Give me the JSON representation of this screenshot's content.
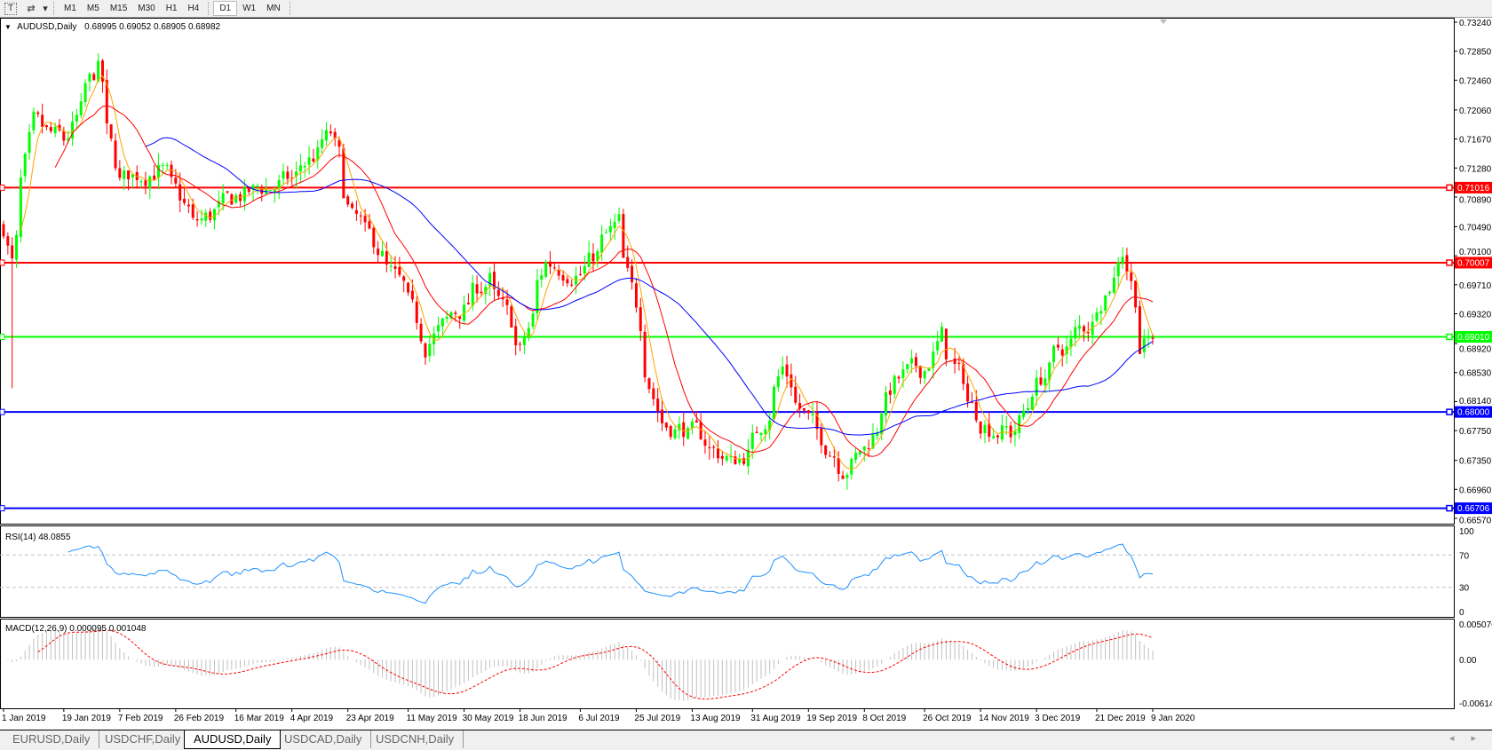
{
  "toolbar": {
    "icons": [
      "text-tool-icon",
      "objects-tool-icon",
      "dropdown-icon"
    ],
    "text_icon_glyph": "T",
    "objects_icon_glyph": "⇄",
    "dropdown_glyph": "▾",
    "timeframes": [
      "M1",
      "M5",
      "M15",
      "M30",
      "H1",
      "H4",
      "D1",
      "W1",
      "MN"
    ],
    "active_timeframe": "D1"
  },
  "chart_header": {
    "arrow": "▼",
    "symbol": "AUDUSD,Daily",
    "ohlc": "0.68995 0.69052 0.68905 0.68982"
  },
  "price_axis": {
    "ticks": [
      "0.73240",
      "0.72850",
      "0.72460",
      "0.72060",
      "0.71670",
      "0.71280",
      "0.70890",
      "0.70490",
      "0.70100",
      "0.69710",
      "0.69320",
      "0.68920",
      "0.68530",
      "0.68140",
      "0.67750",
      "0.67350",
      "0.66960",
      "0.66570"
    ],
    "range": [
      0.6657,
      0.7324
    ]
  },
  "levels": [
    {
      "price": 0.71016,
      "label": "0.71016",
      "color": "#ff0000"
    },
    {
      "price": 0.70007,
      "label": "0.70007",
      "color": "#ff0000"
    },
    {
      "price": 0.6901,
      "label": "0.69010",
      "color": "#00ff00"
    },
    {
      "price": 0.68,
      "label": "0.68000",
      "color": "#0000ff"
    },
    {
      "price": 0.66706,
      "label": "0.66706",
      "color": "#0000ff"
    }
  ],
  "colors": {
    "bull": "#00ff00",
    "bear": "#ff0000",
    "ma_fast": "#ffa500",
    "ma_mid": "#ff0000",
    "ma_slow": "#0000ff",
    "rsi": "#1e90ff",
    "macd_hist": "#c0c0c0",
    "macd_signal": "#ff0000"
  },
  "rsi": {
    "label": "RSI(14) 48.0855",
    "ticks": [
      "100",
      "70",
      "30",
      "0"
    ],
    "levels": [
      70,
      30
    ]
  },
  "macd": {
    "label": "MACD(12,26,9) 0.000095 0.001048",
    "ticks": [
      "0.005076",
      "0.00",
      "-0.006148"
    ],
    "range": [
      -0.006148,
      0.005076
    ]
  },
  "date_axis": [
    "1 Jan 2019",
    "19 Jan 2019",
    "7 Feb 2019",
    "26 Feb 2019",
    "16 Mar 2019",
    "4 Apr 2019",
    "23 Apr 2019",
    "11 May 2019",
    "30 May 2019",
    "18 Jun 2019",
    "6 Jul 2019",
    "25 Jul 2019",
    "13 Aug 2019",
    "31 Aug 2019",
    "19 Sep 2019",
    "8 Oct 2019",
    "26 Oct 2019",
    "14 Nov 2019",
    "3 Dec 2019",
    "21 Dec 2019",
    "9 Jan 2020"
  ],
  "tabs": [
    {
      "label": "EURUSD,Daily",
      "active": false
    },
    {
      "label": "USDCHF,Daily",
      "active": false
    },
    {
      "label": "AUDUSD,Daily",
      "active": true
    },
    {
      "label": "USDCAD,Daily",
      "active": false
    },
    {
      "label": "USDCNH,Daily",
      "active": false
    }
  ],
  "scroll_arrows": "◂ ▸",
  "chart_data": {
    "type": "candlestick",
    "symbol": "AUDUSD",
    "timeframe": "Daily",
    "ylim": [
      0.6657,
      0.7324
    ],
    "last_bar": {
      "open": 0.68995,
      "high": 0.69052,
      "low": 0.68905,
      "close": 0.68982
    },
    "approx_close_path": [
      [
        "2019-01-01",
        0.705
      ],
      [
        "2019-01-03",
        0.7
      ],
      [
        "2019-01-10",
        0.718
      ],
      [
        "2019-01-21",
        0.716
      ],
      [
        "2019-01-31",
        0.726
      ],
      [
        "2019-02-07",
        0.711
      ],
      [
        "2019-02-20",
        0.713
      ],
      [
        "2019-03-04",
        0.705
      ],
      [
        "2019-03-18",
        0.709
      ],
      [
        "2019-04-04",
        0.711
      ],
      [
        "2019-04-17",
        0.717
      ],
      [
        "2019-04-24",
        0.706
      ],
      [
        "2019-05-02",
        0.702
      ],
      [
        "2019-05-13",
        0.694
      ],
      [
        "2019-05-17",
        0.689
      ],
      [
        "2019-05-30",
        0.694
      ],
      [
        "2019-06-07",
        0.698
      ],
      [
        "2019-06-18",
        0.688
      ],
      [
        "2019-06-26",
        0.7
      ],
      [
        "2019-07-08",
        0.699
      ],
      [
        "2019-07-19",
        0.705
      ],
      [
        "2019-07-25",
        0.694
      ],
      [
        "2019-08-02",
        0.679
      ],
      [
        "2019-08-13",
        0.677
      ],
      [
        "2019-08-26",
        0.673
      ],
      [
        "2019-09-02",
        0.676
      ],
      [
        "2019-09-11",
        0.686
      ],
      [
        "2019-09-20",
        0.678
      ],
      [
        "2019-10-01",
        0.673
      ],
      [
        "2019-10-08",
        0.675
      ],
      [
        "2019-10-17",
        0.684
      ],
      [
        "2019-10-28",
        0.686
      ],
      [
        "2019-11-01",
        0.69
      ],
      [
        "2019-11-14",
        0.679
      ],
      [
        "2019-11-25",
        0.677
      ],
      [
        "2019-12-03",
        0.684
      ],
      [
        "2019-12-10",
        0.688
      ],
      [
        "2019-12-20",
        0.692
      ],
      [
        "2019-12-31",
        0.702
      ],
      [
        "2020-01-06",
        0.689
      ],
      [
        "2020-01-09",
        0.6898
      ]
    ],
    "indicators": [
      "MA fast (orange)",
      "MA mid (red)",
      "MA slow (blue)",
      "RSI(14)",
      "MACD(12,26,9)"
    ]
  }
}
